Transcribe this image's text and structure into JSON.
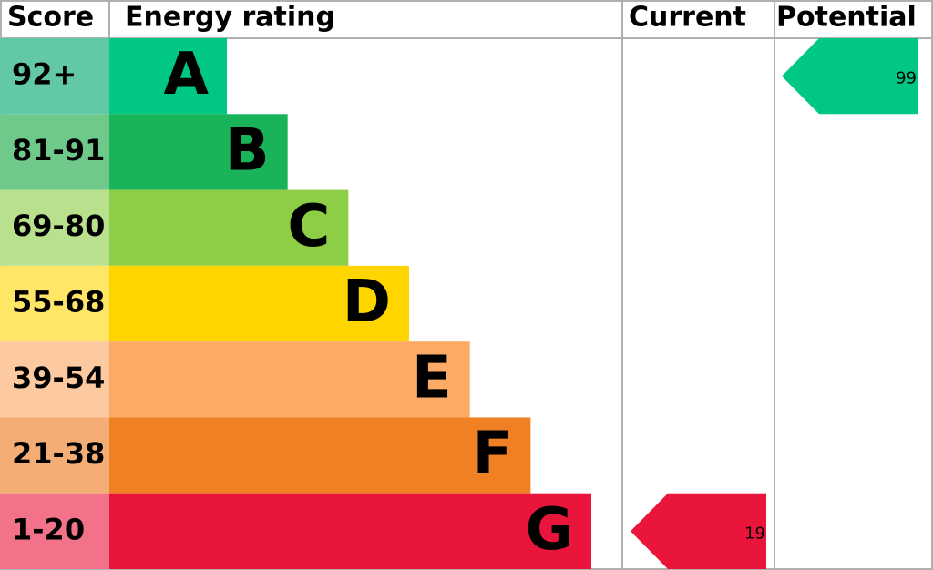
{
  "header": {
    "score": "Score",
    "rating": "Energy rating",
    "current": "Current",
    "potential": "Potential"
  },
  "bands": [
    {
      "score": "92+",
      "letter": "A",
      "color": "#00c781",
      "score_color": "#63c8a7"
    },
    {
      "score": "81-91",
      "letter": "B",
      "color": "#19b459",
      "score_color": "#6fc98b"
    },
    {
      "score": "69-80",
      "letter": "C",
      "color": "#8dce46",
      "score_color": "#b8e08d"
    },
    {
      "score": "55-68",
      "letter": "D",
      "color": "#ffd500",
      "score_color": "#ffe666"
    },
    {
      "score": "39-54",
      "letter": "E",
      "color": "#fcaa65",
      "score_color": "#fdc9a0"
    },
    {
      "score": "21-38",
      "letter": "F",
      "color": "#ef8023",
      "score_color": "#f4ae75"
    },
    {
      "score": "1-20",
      "letter": "G",
      "color": "#e9153b",
      "score_color": "#f27289"
    }
  ],
  "current": 19,
  "potential": 99
}
